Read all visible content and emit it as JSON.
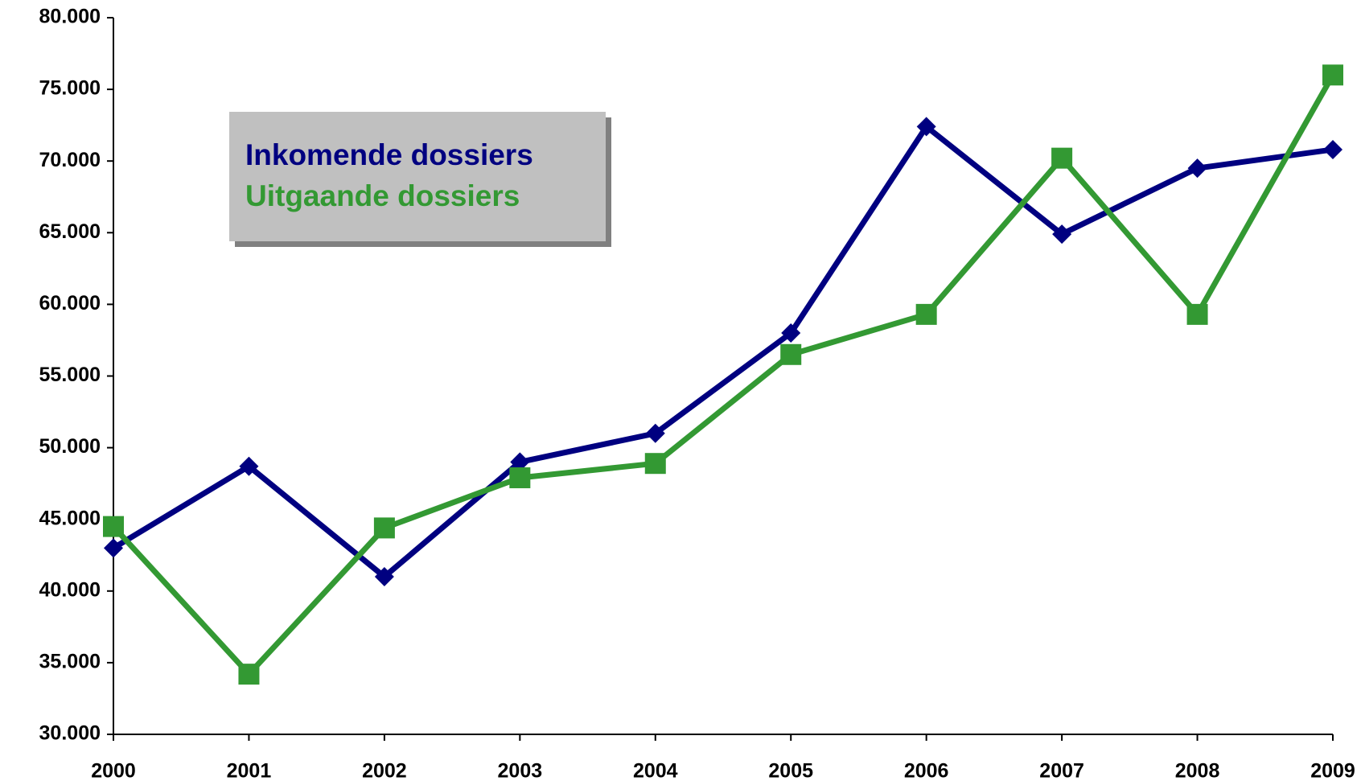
{
  "chart_data": {
    "type": "line",
    "categories": [
      "2000",
      "2001",
      "2002",
      "2003",
      "2004",
      "2005",
      "2006",
      "2007",
      "2008",
      "2009"
    ],
    "series": [
      {
        "name": "Inkomende dossiers",
        "color": "#000080",
        "marker": "diamond",
        "values": [
          43000,
          48700,
          41000,
          49000,
          51000,
          58000,
          72400,
          64900,
          69500,
          70800
        ]
      },
      {
        "name": "Uitgaande dossiers",
        "color": "#339933",
        "marker": "square",
        "values": [
          44500,
          34200,
          44400,
          47900,
          48900,
          56500,
          59300,
          70200,
          59300,
          76000
        ]
      }
    ],
    "ylim": [
      30000,
      80000
    ],
    "yticks": [
      {
        "value": 30000,
        "label": "30.000"
      },
      {
        "value": 35000,
        "label": "35.000"
      },
      {
        "value": 40000,
        "label": "40.000"
      },
      {
        "value": 45000,
        "label": "45.000"
      },
      {
        "value": 50000,
        "label": "50.000"
      },
      {
        "value": 55000,
        "label": "55.000"
      },
      {
        "value": 60000,
        "label": "60.000"
      },
      {
        "value": 65000,
        "label": "65.000"
      },
      {
        "value": 70000,
        "label": "70.000"
      },
      {
        "value": 75000,
        "label": "75.000"
      },
      {
        "value": 80000,
        "label": "80.000"
      }
    ],
    "grid": false,
    "legend": "upper left"
  }
}
